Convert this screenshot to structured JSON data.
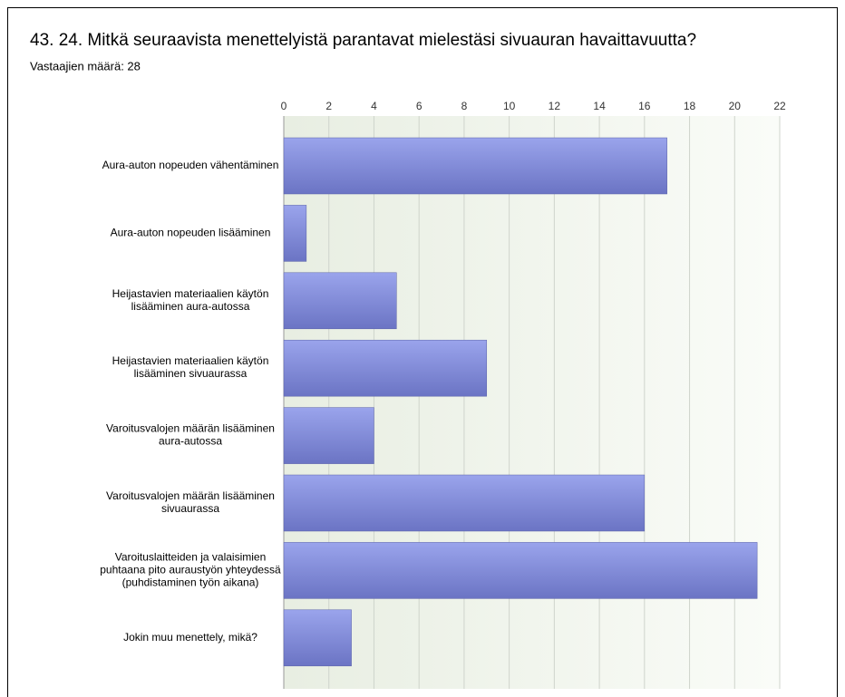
{
  "chart_data": {
    "type": "barh",
    "title": "43. 24. Mitkä seuraavista menettelyistä parantavat mielestäsi  sivuauran  havaittavuutta?",
    "subtitle": "Vastaajien määrä: 28",
    "categories": [
      "Aura-auton nopeuden vähentäminen",
      "Aura-auton nopeuden lisääminen",
      "Heijastavien materiaalien käytön lisääminen aura-autossa",
      "Heijastavien materiaalien käytön lisääminen sivuaurassa",
      "Varoitusvalojen määrän lisääminen aura-autossa",
      "Varoitusvalojen määrän lisääminen sivuaurassa",
      "Varoituslaitteiden ja valaisimien puhtaana pito auraustyön yhteydessä (puhdistaminen työn aikana)",
      "Jokin muu menettely, mikä?"
    ],
    "values": [
      17,
      1,
      5,
      9,
      4,
      16,
      21,
      3
    ],
    "color": "#7c86d6",
    "xlim": [
      0,
      22
    ],
    "xticks": [
      0,
      2,
      4,
      6,
      8,
      10,
      12,
      14,
      16,
      18,
      20,
      22
    ],
    "grid": true
  }
}
